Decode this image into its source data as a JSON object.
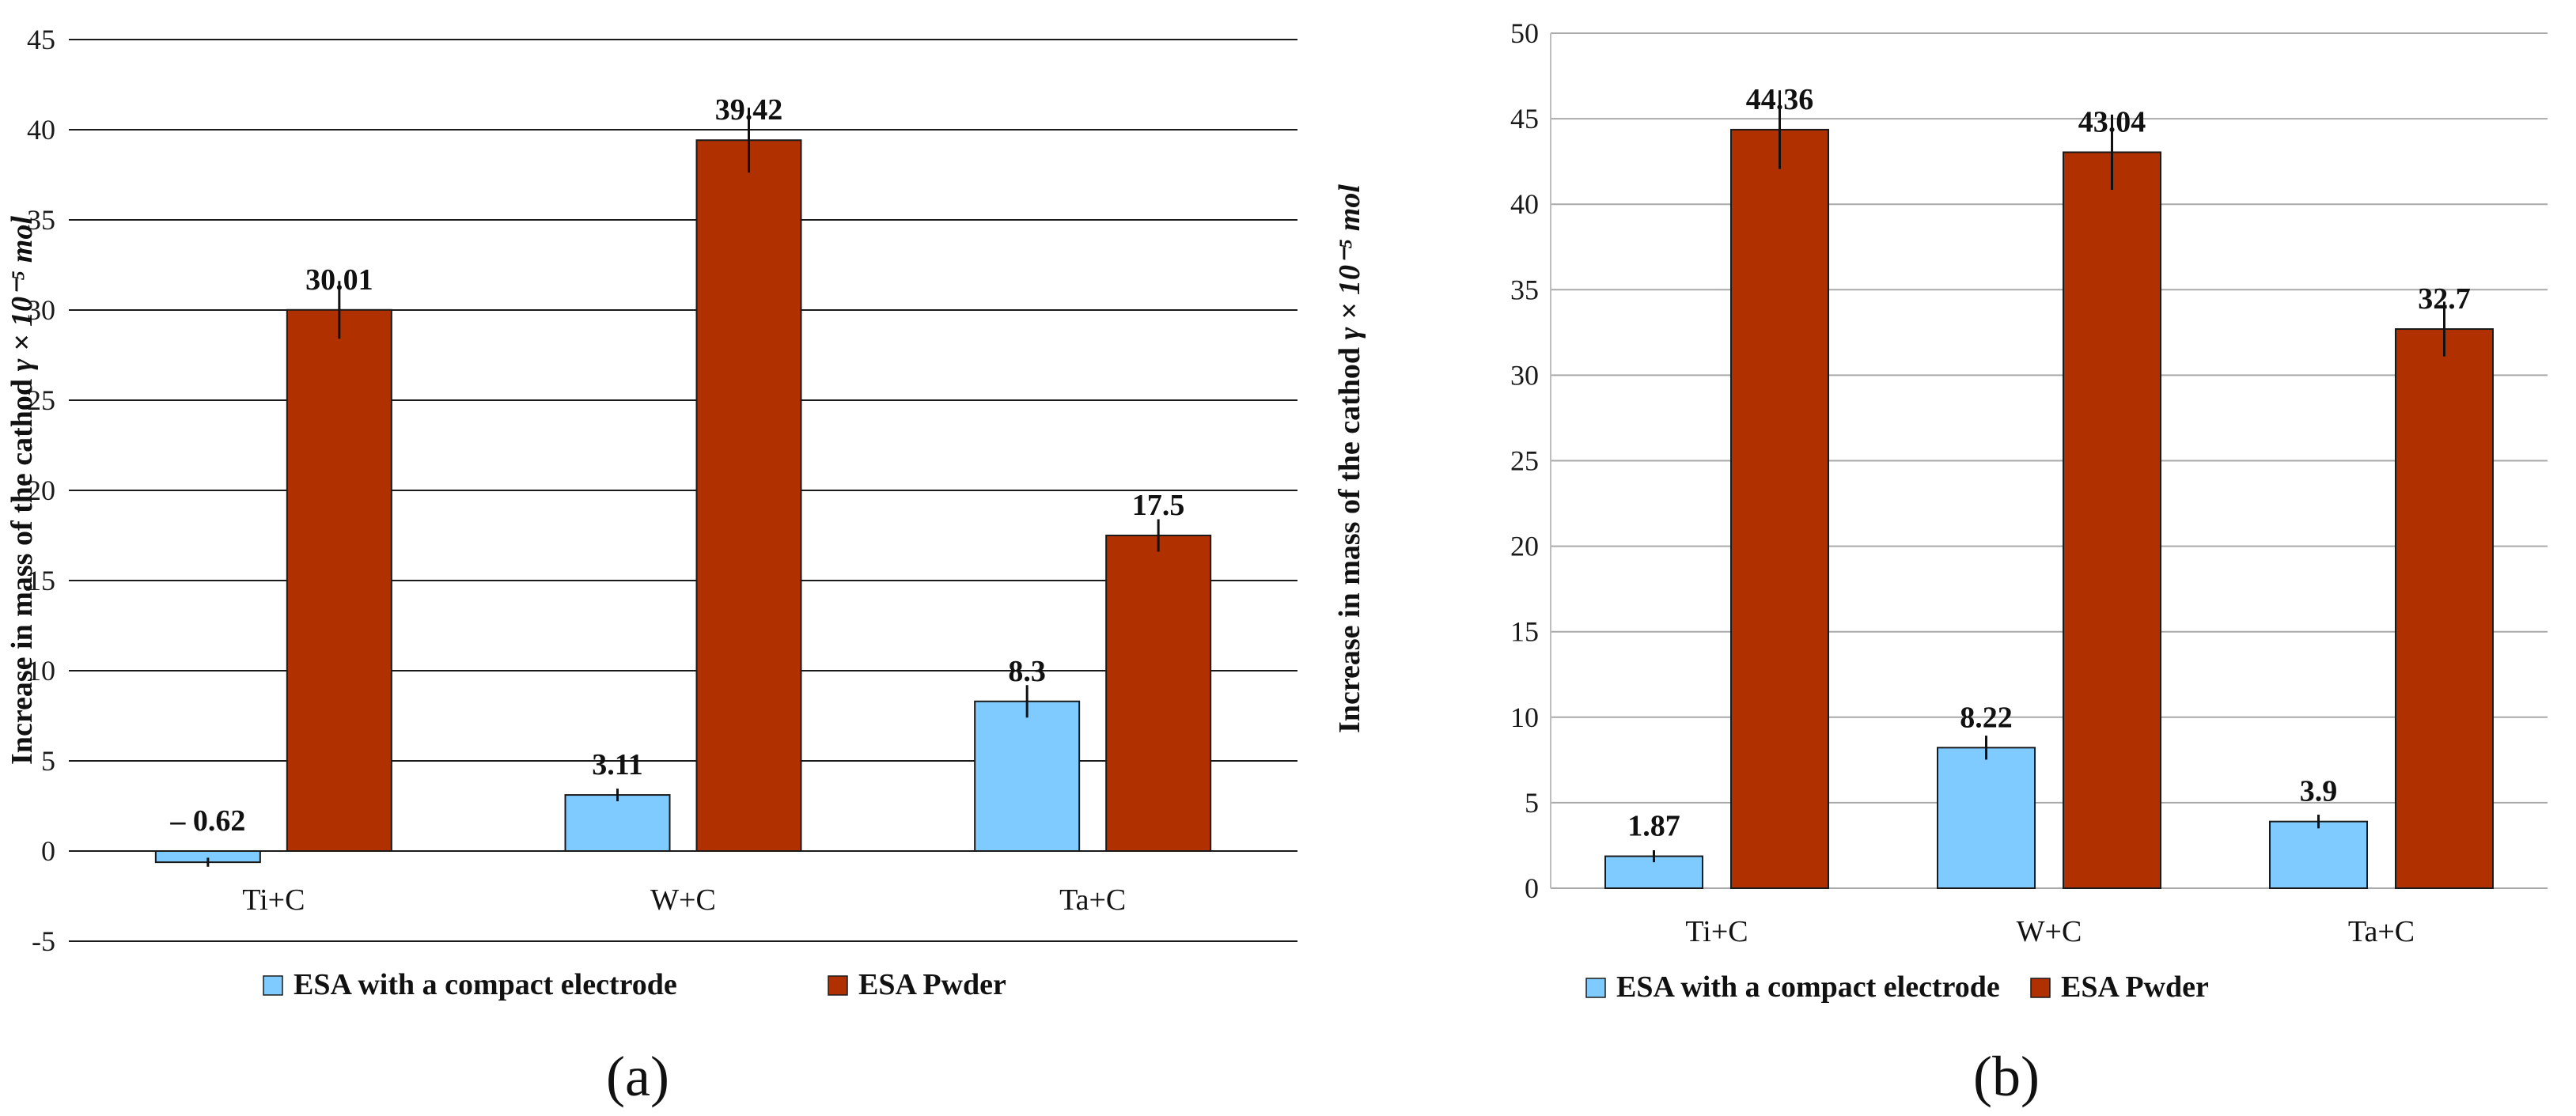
{
  "chart_data": [
    {
      "type": "bar",
      "panel_label": "(a)",
      "ylabel_text": "Increase in mass of the cathod",
      "ylabel_symbol": "γ × 10⁻⁵ mol",
      "categories": [
        "Ti+C",
        "W+C",
        "Ta+C"
      ],
      "series": [
        {
          "name": "ESA with a compact electrode",
          "values": [
            -0.62,
            3.11,
            8.3
          ],
          "labels": [
            "– 0.62",
            "3.11",
            "8.3"
          ],
          "errors": [
            0.25,
            0.35,
            0.9
          ],
          "color": "#7fcbff"
        },
        {
          "name": "ESA Pwder",
          "values": [
            30.01,
            39.42,
            17.5
          ],
          "labels": [
            "30.01",
            "39.42",
            "17.5"
          ],
          "errors": [
            1.6,
            1.8,
            0.9
          ],
          "color": "#b03000"
        }
      ],
      "ylim": [
        -5,
        45
      ],
      "yticks": [
        -5,
        0,
        5,
        10,
        15,
        20,
        25,
        30,
        35,
        40,
        45
      ],
      "grid": true,
      "legend": "bottom"
    },
    {
      "type": "bar",
      "panel_label": "(b)",
      "ylabel_text": "Increase in mass of the cathod",
      "ylabel_symbol": "γ × 10⁻⁵ mol",
      "categories": [
        "Ti+C",
        "W+C",
        "Ta+C"
      ],
      "series": [
        {
          "name": "ESA with a compact electrode",
          "values": [
            1.87,
            8.22,
            3.9
          ],
          "labels": [
            "1.87",
            "8.22",
            "3.9"
          ],
          "errors": [
            0.35,
            0.7,
            0.4
          ],
          "color": "#7fcbff"
        },
        {
          "name": "ESA Pwder",
          "values": [
            44.36,
            43.04,
            32.7
          ],
          "labels": [
            "44.36",
            "43.04",
            "32.7"
          ],
          "errors": [
            2.3,
            2.2,
            1.6
          ],
          "color": "#b03000"
        }
      ],
      "ylim": [
        0,
        50
      ],
      "yticks": [
        0,
        5,
        10,
        15,
        20,
        25,
        30,
        35,
        40,
        45,
        50
      ],
      "grid": true,
      "legend": "bottom"
    }
  ]
}
